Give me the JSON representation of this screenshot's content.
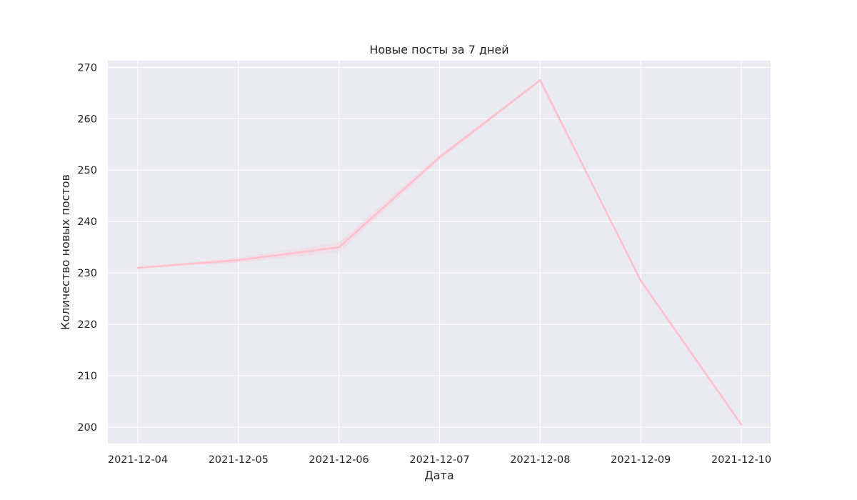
{
  "chart_data": {
    "type": "line",
    "title": "Новые посты за 7 дней",
    "xlabel": "Дата",
    "ylabel": "Количество новых постов",
    "x": [
      "2021-12-04",
      "2021-12-05",
      "2021-12-06",
      "2021-12-07",
      "2021-12-08",
      "2021-12-09",
      "2021-12-10"
    ],
    "series": [
      {
        "values": [
          231.0,
          232.5,
          235.0,
          252.5,
          267.5,
          228.5,
          200.5
        ],
        "ci_lower": [
          230.9,
          232.0,
          234.0,
          252.0,
          267.3,
          228.2,
          200.2
        ],
        "ci_upper": [
          231.1,
          233.0,
          236.0,
          253.0,
          267.7,
          228.8,
          200.8
        ],
        "color": "#ffc0cb"
      }
    ],
    "yticks": [
      200,
      210,
      220,
      230,
      240,
      250,
      260,
      270
    ],
    "ylim": [
      196.8,
      271.3
    ],
    "grid": true,
    "background": "#eaeaf2",
    "gridColor": "#ffffff"
  }
}
